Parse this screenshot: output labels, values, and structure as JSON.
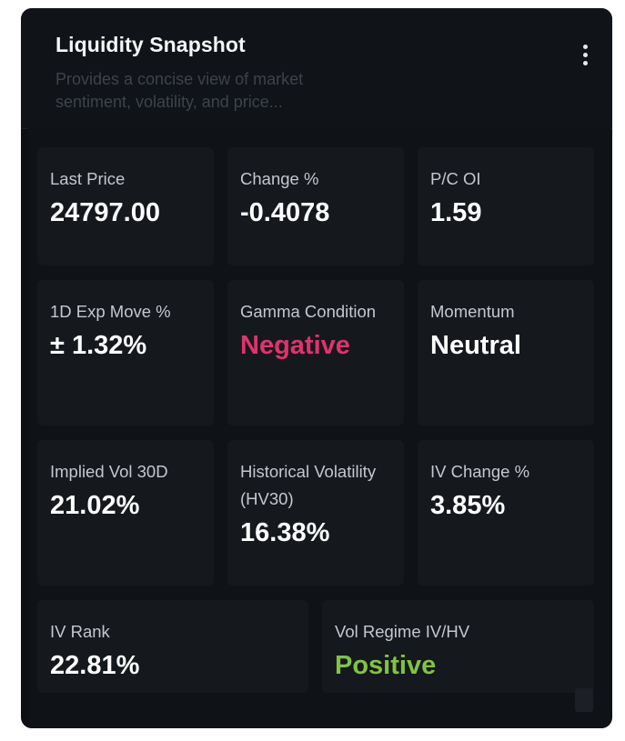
{
  "widget": {
    "title": "Liquidity Snapshot",
    "subtitle": "Provides a concise view of market sentiment, volatility, and price...",
    "menu_icon": "more-vertical-icon"
  },
  "metrics": {
    "last_price": {
      "label": "Last Price",
      "value": "24797.00"
    },
    "change_pct": {
      "label": "Change %",
      "value": "-0.4078"
    },
    "pc_oi": {
      "label": "P/C OI",
      "value": "1.59"
    },
    "exp_move": {
      "label": "1D Exp Move %",
      "value": "± 1.32%"
    },
    "gamma_condition": {
      "label": "Gamma Condition",
      "value": "Negative",
      "color": "#e0336c"
    },
    "momentum": {
      "label": "Momentum",
      "value": "Neutral"
    },
    "implied_vol": {
      "label": "Implied Vol 30D",
      "value": "21.02%"
    },
    "historical_vol": {
      "label": "Historical Volatility (HV30)",
      "value": "16.38%"
    },
    "iv_change": {
      "label": "IV Change %",
      "value": "3.85%"
    },
    "iv_rank": {
      "label": "IV Rank",
      "value": "22.81%"
    },
    "vol_regime": {
      "label": "Vol Regime IV/HV",
      "value": "Positive",
      "color": "#82c341"
    }
  },
  "colors": {
    "card_background": "#0d0f12",
    "tile_background": "#15181d",
    "negative": "#e0336c",
    "positive": "#82c341"
  }
}
